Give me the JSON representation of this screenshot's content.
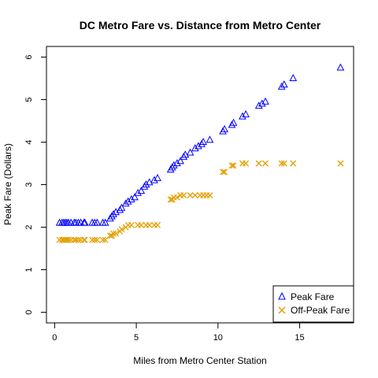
{
  "chart_data": {
    "type": "scatter",
    "title": "DC Metro Fare vs. Distance from Metro Center",
    "xlabel": "Miles from Metro Center Station",
    "ylabel": "Peak Fare (Dollars)",
    "xlim": [
      -0.5,
      18.3
    ],
    "ylim": [
      -0.25,
      6.25
    ],
    "xticks": [
      0,
      5,
      10,
      15
    ],
    "yticks": [
      0,
      1,
      2,
      3,
      4,
      5,
      6
    ],
    "legend_position": "bottom-right",
    "series": [
      {
        "name": "Peak Fare",
        "marker": "triangle",
        "color": "#0000ff",
        "points": [
          [
            0.3,
            2.1
          ],
          [
            0.45,
            2.1
          ],
          [
            0.55,
            2.1
          ],
          [
            0.65,
            2.1
          ],
          [
            0.75,
            2.1
          ],
          [
            0.85,
            2.1
          ],
          [
            1.0,
            2.1
          ],
          [
            1.2,
            2.1
          ],
          [
            1.3,
            2.1
          ],
          [
            1.45,
            2.1
          ],
          [
            1.6,
            2.1
          ],
          [
            1.8,
            2.1
          ],
          [
            1.85,
            2.1
          ],
          [
            2.3,
            2.1
          ],
          [
            2.45,
            2.1
          ],
          [
            2.6,
            2.1
          ],
          [
            2.95,
            2.1
          ],
          [
            3.1,
            2.1
          ],
          [
            3.4,
            2.2
          ],
          [
            3.5,
            2.25
          ],
          [
            3.6,
            2.3
          ],
          [
            3.75,
            2.35
          ],
          [
            4.0,
            2.4
          ],
          [
            4.1,
            2.45
          ],
          [
            4.35,
            2.55
          ],
          [
            4.5,
            2.6
          ],
          [
            4.7,
            2.65
          ],
          [
            4.9,
            2.7
          ],
          [
            5.1,
            2.8
          ],
          [
            5.3,
            2.85
          ],
          [
            5.5,
            2.95
          ],
          [
            5.6,
            3.0
          ],
          [
            5.8,
            3.05
          ],
          [
            6.1,
            3.1
          ],
          [
            6.3,
            3.15
          ],
          [
            7.1,
            3.35
          ],
          [
            7.2,
            3.4
          ],
          [
            7.3,
            3.45
          ],
          [
            7.5,
            3.5
          ],
          [
            7.7,
            3.55
          ],
          [
            7.9,
            3.65
          ],
          [
            8.0,
            3.7
          ],
          [
            8.3,
            3.75
          ],
          [
            8.6,
            3.85
          ],
          [
            8.8,
            3.9
          ],
          [
            9.0,
            3.95
          ],
          [
            9.1,
            4.0
          ],
          [
            9.5,
            4.05
          ],
          [
            10.3,
            4.25
          ],
          [
            10.4,
            4.3
          ],
          [
            10.85,
            4.4
          ],
          [
            10.95,
            4.45
          ],
          [
            11.5,
            4.6
          ],
          [
            11.7,
            4.65
          ],
          [
            12.5,
            4.85
          ],
          [
            12.7,
            4.9
          ],
          [
            12.9,
            4.95
          ],
          [
            13.9,
            5.3
          ],
          [
            14.05,
            5.35
          ],
          [
            14.6,
            5.5
          ],
          [
            17.5,
            5.75
          ]
        ]
      },
      {
        "name": "Off-Peak Fare",
        "marker": "x",
        "color": "#e69f00",
        "points": [
          [
            0.3,
            1.7
          ],
          [
            0.45,
            1.7
          ],
          [
            0.55,
            1.7
          ],
          [
            0.65,
            1.7
          ],
          [
            0.75,
            1.7
          ],
          [
            0.85,
            1.7
          ],
          [
            1.0,
            1.7
          ],
          [
            1.2,
            1.7
          ],
          [
            1.3,
            1.7
          ],
          [
            1.45,
            1.7
          ],
          [
            1.6,
            1.7
          ],
          [
            1.8,
            1.7
          ],
          [
            1.85,
            1.7
          ],
          [
            2.3,
            1.7
          ],
          [
            2.45,
            1.7
          ],
          [
            2.6,
            1.7
          ],
          [
            2.95,
            1.7
          ],
          [
            3.1,
            1.7
          ],
          [
            3.4,
            1.8
          ],
          [
            3.5,
            1.8
          ],
          [
            3.6,
            1.85
          ],
          [
            3.75,
            1.85
          ],
          [
            4.0,
            1.9
          ],
          [
            4.1,
            1.95
          ],
          [
            4.35,
            2.0
          ],
          [
            4.5,
            2.05
          ],
          [
            4.7,
            2.05
          ],
          [
            5.1,
            2.05
          ],
          [
            5.3,
            2.05
          ],
          [
            5.6,
            2.05
          ],
          [
            5.8,
            2.05
          ],
          [
            6.1,
            2.05
          ],
          [
            6.3,
            2.05
          ],
          [
            7.1,
            2.65
          ],
          [
            7.2,
            2.65
          ],
          [
            7.3,
            2.7
          ],
          [
            7.5,
            2.7
          ],
          [
            7.7,
            2.75
          ],
          [
            7.9,
            2.75
          ],
          [
            8.3,
            2.75
          ],
          [
            8.6,
            2.75
          ],
          [
            8.9,
            2.75
          ],
          [
            9.1,
            2.75
          ],
          [
            9.3,
            2.75
          ],
          [
            9.5,
            2.75
          ],
          [
            10.3,
            3.3
          ],
          [
            10.4,
            3.3
          ],
          [
            10.85,
            3.45
          ],
          [
            10.95,
            3.45
          ],
          [
            11.5,
            3.5
          ],
          [
            11.7,
            3.5
          ],
          [
            12.5,
            3.5
          ],
          [
            12.9,
            3.5
          ],
          [
            13.9,
            3.5
          ],
          [
            14.05,
            3.5
          ],
          [
            14.6,
            3.5
          ],
          [
            17.5,
            3.5
          ]
        ]
      }
    ]
  }
}
